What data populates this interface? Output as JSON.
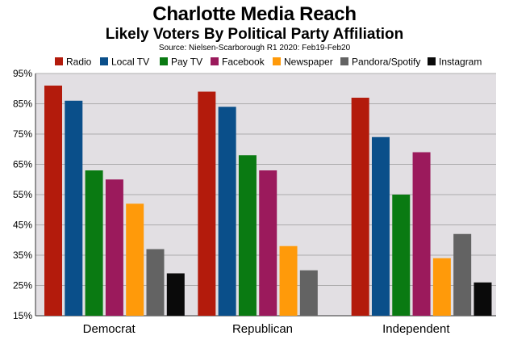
{
  "chart_data": {
    "type": "bar",
    "title": "Charlotte Media Reach",
    "subtitle": "Likely Voters By Political Party Affiliation",
    "source": "Source: Nielsen-Scarborough R1 2020: Feb19-Feb20",
    "categories": [
      "Democrat",
      "Republican",
      "Independent"
    ],
    "ylim": [
      15,
      95
    ],
    "yticks": [
      15,
      25,
      35,
      45,
      55,
      65,
      75,
      85,
      95
    ],
    "ytick_labels": [
      "15%",
      "25%",
      "35%",
      "45%",
      "55%",
      "65%",
      "75%",
      "85%",
      "95%"
    ],
    "grid": true,
    "legend_position": "top",
    "series": [
      {
        "name": "Radio",
        "color": "#b31b0c",
        "values": [
          91,
          89,
          87
        ]
      },
      {
        "name": "Local TV",
        "color": "#0a4f8a",
        "values": [
          86,
          84,
          74
        ]
      },
      {
        "name": "Pay TV",
        "color": "#0a7a12",
        "values": [
          63,
          68,
          55
        ]
      },
      {
        "name": "Facebook",
        "color": "#9b1a5c",
        "values": [
          60,
          63,
          69
        ]
      },
      {
        "name": "Newspaper",
        "color": "#ff9a0a",
        "values": [
          52,
          38,
          34
        ]
      },
      {
        "name": "Pandora/Spotify",
        "color": "#636363",
        "values": [
          37,
          30,
          42
        ]
      },
      {
        "name": "Instagram",
        "color": "#0a0a0a",
        "values": [
          29,
          null,
          26
        ]
      }
    ],
    "plot_background": "#e2dfe3"
  }
}
